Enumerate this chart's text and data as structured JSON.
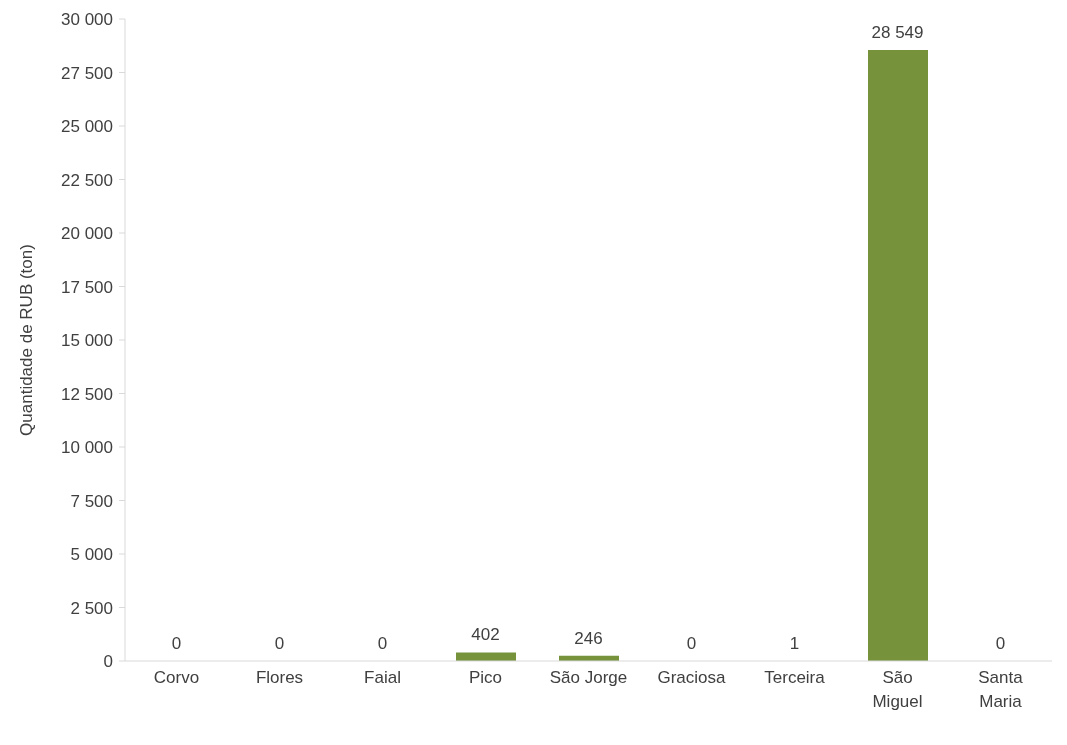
{
  "chart_data": {
    "type": "bar",
    "ylabel": "Quantidade de RUB (ton)",
    "categories": [
      "Corvo",
      "Flores",
      "Faial",
      "Pico",
      "São Jorge",
      "Graciosa",
      "Terceira",
      "São Miguel",
      "Santa Maria"
    ],
    "values": [
      0,
      0,
      0,
      402,
      246,
      0,
      1,
      28549,
      0
    ],
    "value_labels": [
      "0",
      "0",
      "0",
      "402",
      "246",
      "0",
      "1",
      "28 549",
      "0"
    ],
    "color": "#76933c",
    "ylim": [
      0,
      30000
    ],
    "yticks": [
      0,
      {
        "value": 2500,
        "label": "2 500"
      },
      {
        "value": 5000,
        "label": "5 000"
      },
      {
        "value": 7500,
        "label": "7 500"
      },
      {
        "value": 10000,
        "label": "10 000"
      },
      {
        "value": 12500,
        "label": "12 500"
      },
      {
        "value": 15000,
        "label": "15 000"
      },
      {
        "value": 17500,
        "label": "17 500"
      },
      {
        "value": 20000,
        "label": "20 000"
      },
      {
        "value": 22500,
        "label": "22 500"
      },
      {
        "value": 25000,
        "label": "25 000"
      },
      {
        "value": 27500,
        "label": "27 500"
      },
      {
        "value": 30000,
        "label": "30 000"
      }
    ],
    "grid": false,
    "legend": false
  }
}
